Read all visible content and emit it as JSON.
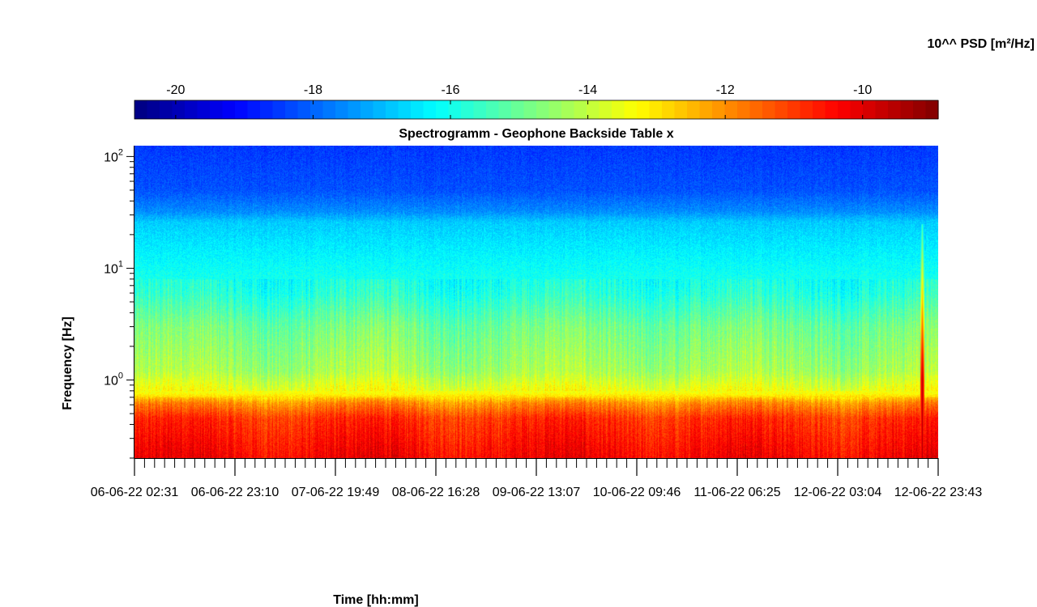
{
  "chart_data": {
    "type": "heatmap",
    "title": "Spectrogramm - Geophone Backside Table x",
    "xlabel": "Time [hh:mm]",
    "ylabel": "Frequency [Hz]",
    "colorbar_label": "10^^ PSD [m²/Hz]",
    "colormap": "jet",
    "colorbar_range": [
      -20.6,
      -8.9
    ],
    "colorbar_ticks": [
      -20,
      -18,
      -16,
      -14,
      -12,
      -10
    ],
    "y_scale": "log",
    "ylim": [
      0.2,
      125
    ],
    "y_ticks": [
      {
        "value": 1,
        "base": "10",
        "exp": "0"
      },
      {
        "value": 10,
        "base": "10",
        "exp": "1"
      },
      {
        "value": 100,
        "base": "10",
        "exp": "2"
      }
    ],
    "x_tick_labels": [
      "06-06-22 02:31",
      "06-06-22 23:10",
      "07-06-22 19:49",
      "08-06-22 16:28",
      "09-06-22 13:07",
      "10-06-22 09:46",
      "11-06-22 06:25",
      "12-06-22 03:04",
      "12-06-22 23:43"
    ],
    "x_minor_ticks_per_interval": 10,
    "psd_profile": [
      {
        "f": 0.2,
        "psd": -10.3
      },
      {
        "f": 0.45,
        "psd": -10.9
      },
      {
        "f": 0.62,
        "psd": -12.0
      },
      {
        "f": 0.75,
        "psd": -13.3
      },
      {
        "f": 1.2,
        "psd": -14.3
      },
      {
        "f": 3,
        "psd": -14.9
      },
      {
        "f": 6,
        "psd": -15.8
      },
      {
        "f": 15,
        "psd": -16.4
      },
      {
        "f": 26,
        "psd": -16.8
      },
      {
        "f": 32,
        "psd": -17.5
      },
      {
        "f": 50,
        "psd": -18.2
      },
      {
        "f": 125,
        "psd": -18.5
      }
    ],
    "events": [
      {
        "time": "12-06-22 ~19:20",
        "f_range": [
          0.2,
          25
        ],
        "psd": -9.5
      }
    ],
    "colors": {
      "jet": [
        "#00008f",
        "#0000ff",
        "#00ffff",
        "#ffff00",
        "#ff0000",
        "#800000"
      ]
    }
  }
}
